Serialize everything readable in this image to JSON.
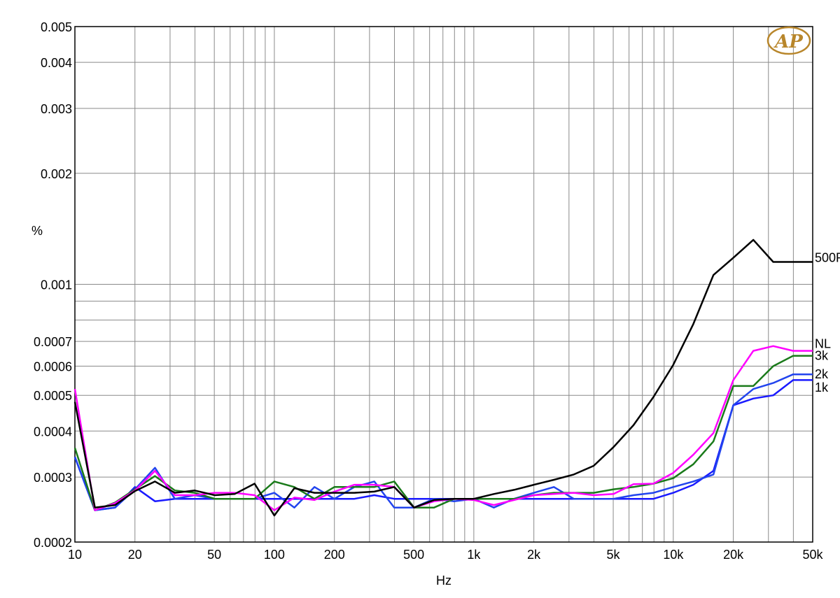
{
  "chart_data": {
    "type": "line",
    "title": "",
    "xlabel": "Hz",
    "ylabel": "%",
    "x_scale": "log",
    "y_scale": "log",
    "xlim": [
      10,
      50000
    ],
    "ylim": [
      0.0002,
      0.005
    ],
    "grid": true,
    "logo_text": "AP",
    "x_ticks": [
      {
        "value": 10,
        "label": "10"
      },
      {
        "value": 20,
        "label": "20"
      },
      {
        "value": 50,
        "label": "50"
      },
      {
        "value": 100,
        "label": "100"
      },
      {
        "value": 200,
        "label": "200"
      },
      {
        "value": 500,
        "label": "500"
      },
      {
        "value": 1000,
        "label": "1k"
      },
      {
        "value": 2000,
        "label": "2k"
      },
      {
        "value": 5000,
        "label": "5k"
      },
      {
        "value": 10000,
        "label": "10k"
      },
      {
        "value": 20000,
        "label": "20k"
      },
      {
        "value": 50000,
        "label": "50k"
      }
    ],
    "y_ticks": [
      {
        "value": 0.005,
        "label": "0.005"
      },
      {
        "value": 0.004,
        "label": "0.004"
      },
      {
        "value": 0.003,
        "label": "0.003"
      },
      {
        "value": 0.002,
        "label": "0.002"
      },
      {
        "value": 0.001,
        "label": "0.001"
      },
      {
        "value": 0.0007,
        "label": "0.0007"
      },
      {
        "value": 0.0006,
        "label": "0.0006"
      },
      {
        "value": 0.0005,
        "label": "0.0005"
      },
      {
        "value": 0.0004,
        "label": "0.0004"
      },
      {
        "value": 0.0003,
        "label": "0.0003"
      },
      {
        "value": 0.0002,
        "label": "0.0002"
      }
    ],
    "y_extra_gridlines": [
      0.0009,
      0.0008
    ],
    "x": [
      10,
      12.6,
      15.9,
      20,
      25.2,
      31.7,
      39.9,
      50.2,
      63.2,
      79.6,
      100,
      126,
      159,
      200,
      252,
      317,
      399,
      502,
      632,
      796,
      1000,
      1260,
      1590,
      2000,
      2520,
      3170,
      3990,
      5020,
      6320,
      7960,
      10000,
      12600,
      15900,
      20000,
      25200,
      31700,
      39900,
      50000
    ],
    "series": [
      {
        "name": "500R",
        "color": "#000000",
        "label_value": 0.00118,
        "values": [
          0.00048,
          0.000248,
          0.000252,
          0.000275,
          0.000292,
          0.000272,
          0.000276,
          0.000268,
          0.00027,
          0.000288,
          0.000236,
          0.00028,
          0.000272,
          0.000272,
          0.000272,
          0.000274,
          0.000282,
          0.000248,
          0.00026,
          0.000262,
          0.000262,
          0.00027,
          0.000277,
          0.000286,
          0.000295,
          0.000305,
          0.000322,
          0.000362,
          0.000415,
          0.000495,
          0.000605,
          0.00078,
          0.00106,
          0.00118,
          0.00132,
          0.00115,
          0.00115,
          0.00115
        ]
      },
      {
        "name": "NL",
        "color": "#ff00ff",
        "label_value": 0.00069,
        "values": [
          0.00052,
          0.000244,
          0.000255,
          0.000276,
          0.000312,
          0.000268,
          0.000268,
          0.000272,
          0.000272,
          0.000268,
          0.000244,
          0.000264,
          0.00026,
          0.000274,
          0.000286,
          0.000286,
          0.000282,
          0.000248,
          0.000258,
          0.000262,
          0.00026,
          0.000252,
          0.00026,
          0.000268,
          0.00027,
          0.000272,
          0.000268,
          0.00027,
          0.000287,
          0.000288,
          0.000308,
          0.000345,
          0.000395,
          0.00055,
          0.00066,
          0.00068,
          0.00066,
          0.00066
        ]
      },
      {
        "name": "3k",
        "color": "#1a7a1a",
        "label_value": 0.00064,
        "values": [
          0.00036,
          0.000244,
          0.000256,
          0.000278,
          0.000302,
          0.000276,
          0.000272,
          0.000262,
          0.000262,
          0.000262,
          0.000292,
          0.000282,
          0.000262,
          0.000282,
          0.000282,
          0.000282,
          0.000292,
          0.000248,
          0.000248,
          0.000262,
          0.000262,
          0.000262,
          0.000262,
          0.000268,
          0.000272,
          0.000272,
          0.000272,
          0.000278,
          0.000282,
          0.000288,
          0.000298,
          0.000325,
          0.000375,
          0.00053,
          0.00053,
          0.0006,
          0.00064,
          0.00064
        ]
      },
      {
        "name": "2k",
        "color": "#2244ee",
        "label_value": 0.00057,
        "values": [
          0.00034,
          0.000244,
          0.000248,
          0.000278,
          0.000318,
          0.000262,
          0.000268,
          0.000262,
          0.000262,
          0.000262,
          0.000272,
          0.000248,
          0.000282,
          0.000262,
          0.000282,
          0.000292,
          0.000248,
          0.000248,
          0.000262,
          0.000258,
          0.000262,
          0.000248,
          0.000262,
          0.000272,
          0.000282,
          0.000262,
          0.000262,
          0.000262,
          0.000268,
          0.000272,
          0.000282,
          0.000292,
          0.000305,
          0.00047,
          0.00052,
          0.00054,
          0.00057,
          0.00057
        ]
      },
      {
        "name": "1k",
        "color": "#1a1aff",
        "label_value": 0.000525,
        "values": [
          0.00034,
          0.000244,
          0.000248,
          0.000282,
          0.000258,
          0.000262,
          0.000262,
          0.000262,
          0.000262,
          0.000262,
          0.000262,
          0.000262,
          0.000262,
          0.000262,
          0.000262,
          0.000268,
          0.000262,
          0.000262,
          0.000262,
          0.000262,
          0.000262,
          0.000262,
          0.000262,
          0.000262,
          0.000262,
          0.000262,
          0.000262,
          0.000262,
          0.000262,
          0.000262,
          0.000272,
          0.000286,
          0.000312,
          0.00047,
          0.00049,
          0.0005,
          0.00055,
          0.00055
        ]
      }
    ]
  }
}
